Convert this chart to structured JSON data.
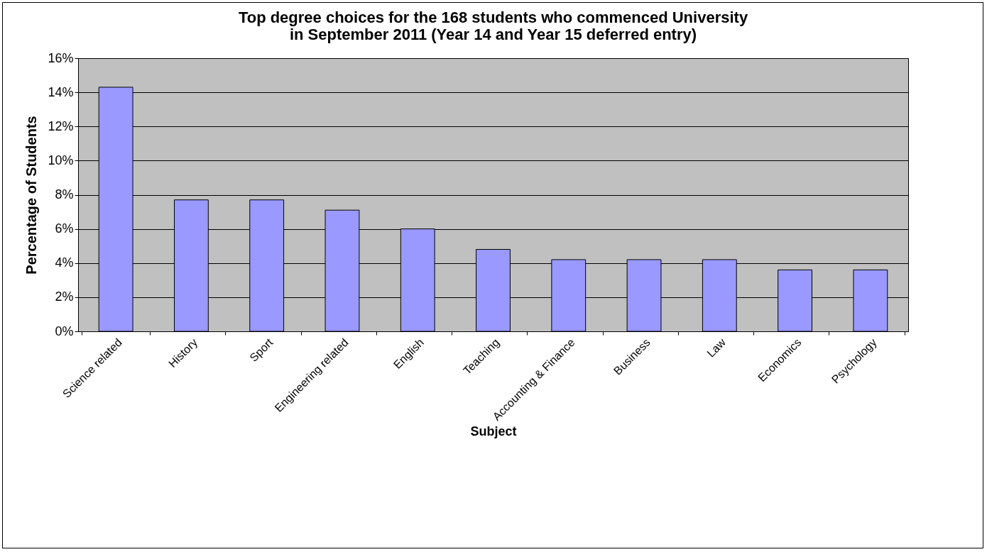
{
  "chart_data": {
    "type": "bar",
    "title": [
      "Top degree choices for the 168 students who commenced University",
      "in September 2011 (Year 14 and Year 15 deferred entry)"
    ],
    "xlabel": "Subject",
    "ylabel": "Percentage of Students",
    "categories": [
      "Science related",
      "History",
      "Sport",
      "Engineering related",
      "English",
      "Teaching",
      "Accounting & Finance",
      "Business",
      "Law",
      "Economics",
      "Psychology"
    ],
    "values": [
      14.3,
      7.7,
      7.7,
      7.1,
      6.0,
      4.8,
      4.2,
      4.2,
      4.2,
      3.6,
      3.6
    ],
    "color": "#9999ff",
    "ylim": [
      0,
      16
    ],
    "yticks": [
      {
        "value": 0,
        "label": "0%"
      },
      {
        "value": 2,
        "label": "2%"
      },
      {
        "value": 4,
        "label": "4%"
      },
      {
        "value": 6,
        "label": "6%"
      },
      {
        "value": 8,
        "label": "8%"
      },
      {
        "value": 10,
        "label": "10%"
      },
      {
        "value": 12,
        "label": "12%"
      },
      {
        "value": 14,
        "label": "14%"
      },
      {
        "value": 16,
        "label": "16%"
      }
    ],
    "grid": "y",
    "legend": false
  }
}
